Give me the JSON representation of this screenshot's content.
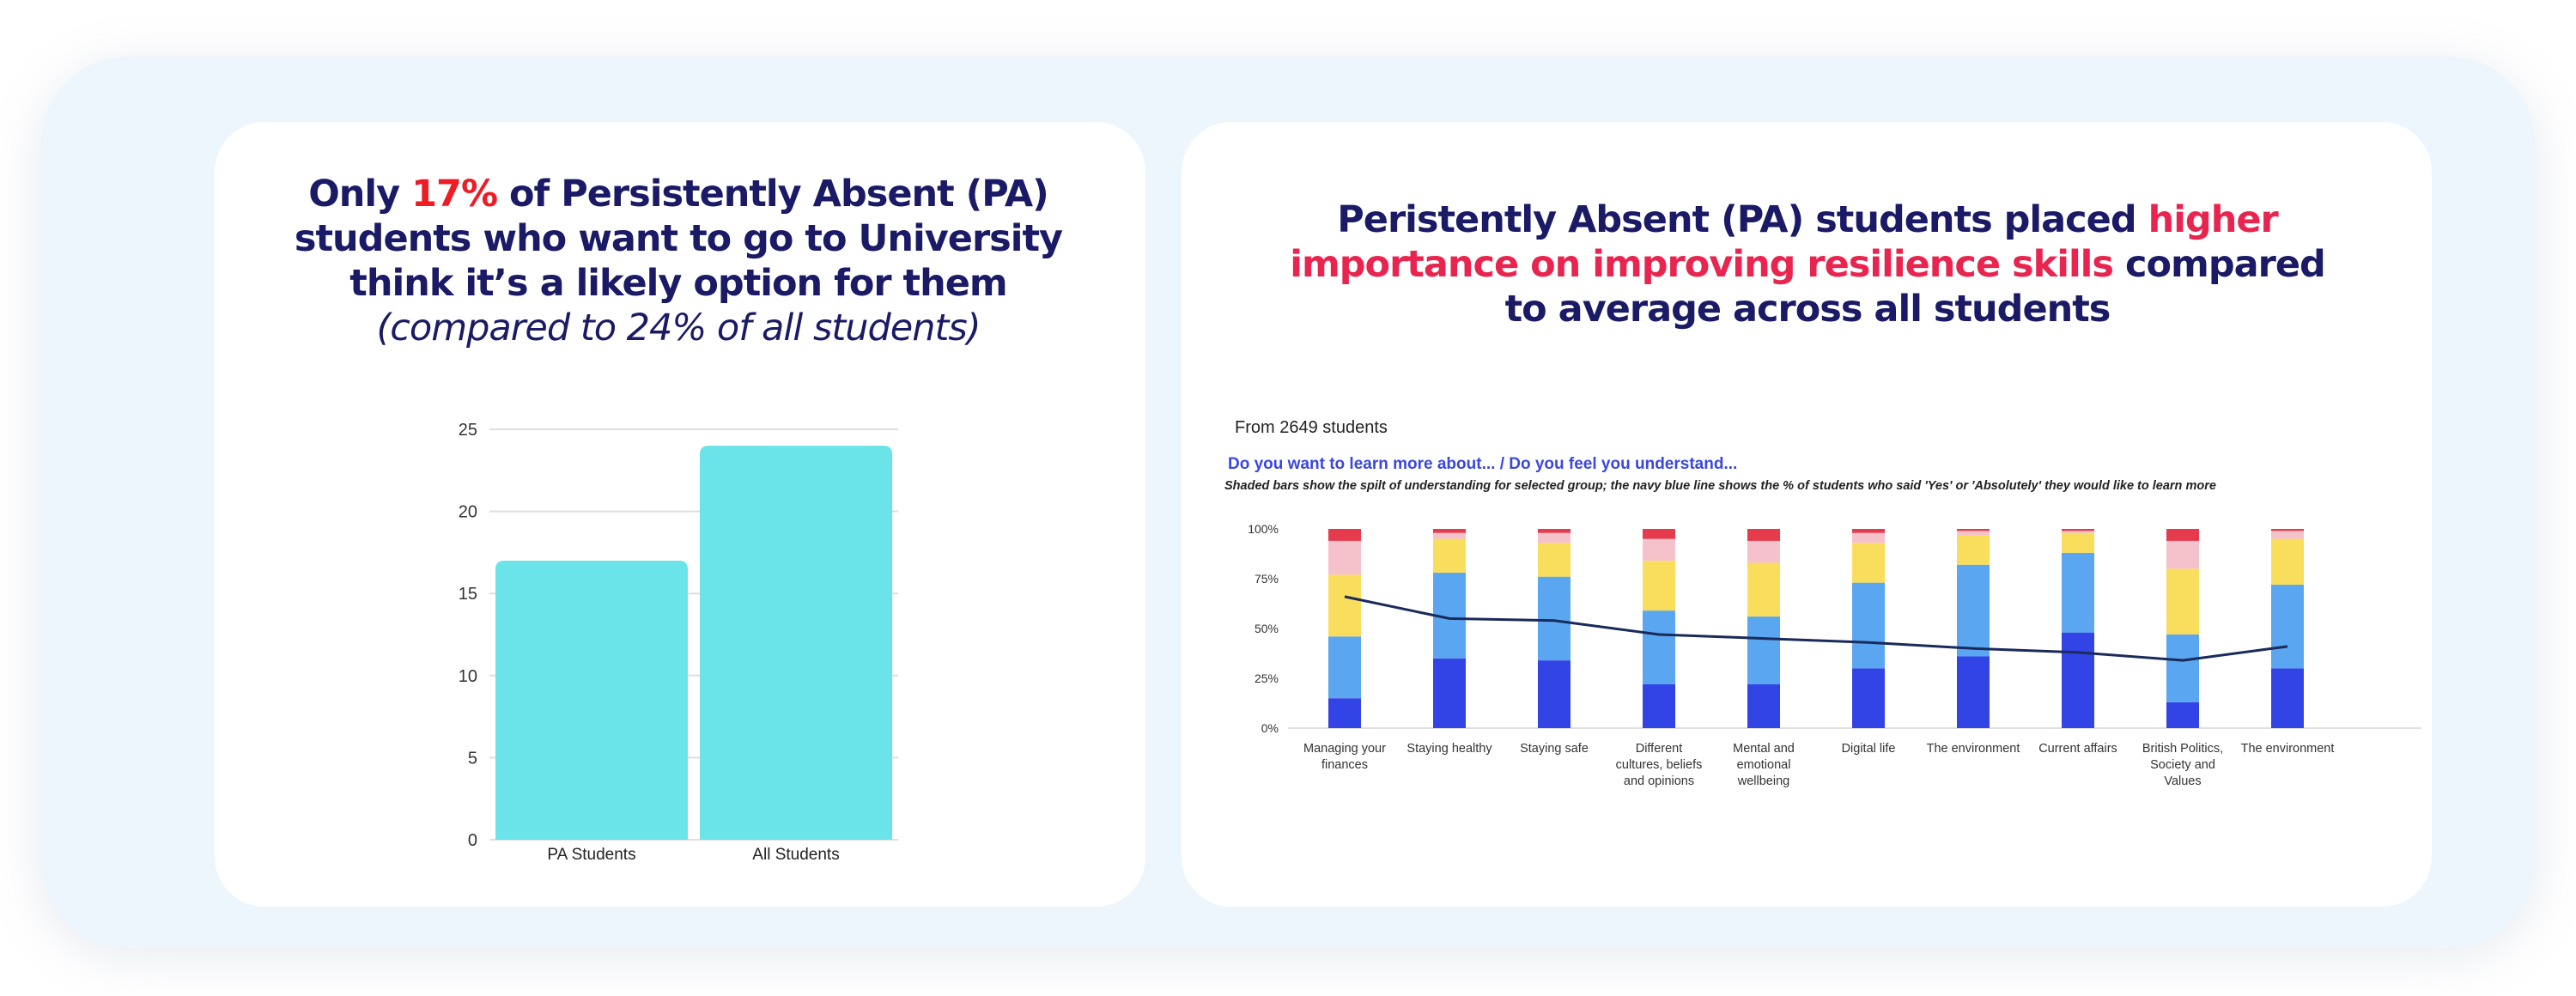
{
  "left_panel": {
    "headline": {
      "part1": "Only ",
      "highlight": "17%",
      "part2": " of Persistently Absent (PA) students who want to go to University think it’s a likely option for them ",
      "italic": "(compared to 24% of all students)"
    }
  },
  "right_panel": {
    "headline": {
      "part1": "Peristently Absent (PA) students placed ",
      "highlight": "higher importance on improving resilience skills",
      "part2": " compared to average across all students"
    },
    "note": "From 2649 students",
    "question": "Do you want to learn more about... / Do you feel you understand...",
    "caption": "Shaded bars show the spilt of understanding for selected group; the navy blue line shows the % of students who said 'Yes' or 'Absolutely' they would like to learn more"
  },
  "colors": {
    "left_bar": "#6ae4e8",
    "headline": "#1a1a66",
    "highlight_red": "#ee1c25",
    "highlight_pink": "#e8244f",
    "seg_dark_blue": "#3344e6",
    "seg_light_blue": "#5aa6f0",
    "seg_yellow": "#f8de5c",
    "seg_pink": "#f5c2cb",
    "seg_red": "#e63a4d",
    "line": "#1a2a5a",
    "question": "#3a47e0"
  },
  "chart_data": [
    {
      "type": "bar",
      "categories": [
        "PA Students",
        "All Students"
      ],
      "values": [
        17,
        24
      ],
      "ylim": [
        0,
        25
      ],
      "yticks": [
        0,
        5,
        10,
        15,
        20,
        25
      ],
      "grid": true
    },
    {
      "type": "bar",
      "stacked": true,
      "categories": [
        [
          "Managing your",
          "finances"
        ],
        [
          "Staying healthy"
        ],
        [
          "Staying safe"
        ],
        [
          "Different",
          "cultures, beliefs",
          "and opinions"
        ],
        [
          "Mental and",
          "emotional",
          "wellbeing"
        ],
        [
          "Digital life"
        ],
        [
          "The environment"
        ],
        [
          "Current affairs"
        ],
        [
          "British Politics,",
          "Society and",
          "Values"
        ],
        [
          "The environment"
        ]
      ],
      "yticks": [
        "0%",
        "25%",
        "50%",
        "75%",
        "100%"
      ],
      "ylim": [
        0,
        100
      ],
      "segments": [
        [
          15,
          31,
          31,
          17,
          6
        ],
        [
          35,
          43,
          17,
          3,
          2
        ],
        [
          34,
          42,
          17,
          5,
          2
        ],
        [
          22,
          37,
          25,
          11,
          5
        ],
        [
          22,
          34,
          27,
          11,
          6
        ],
        [
          30,
          43,
          20,
          5,
          2
        ],
        [
          36,
          46,
          15,
          2,
          1
        ],
        [
          48,
          40,
          10,
          1,
          1
        ],
        [
          13,
          34,
          33,
          14,
          6
        ],
        [
          30,
          42,
          23,
          4,
          1
        ]
      ],
      "line_values": [
        66,
        55,
        54,
        47,
        45,
        43,
        40,
        38,
        34,
        41
      ],
      "grid": false
    }
  ]
}
